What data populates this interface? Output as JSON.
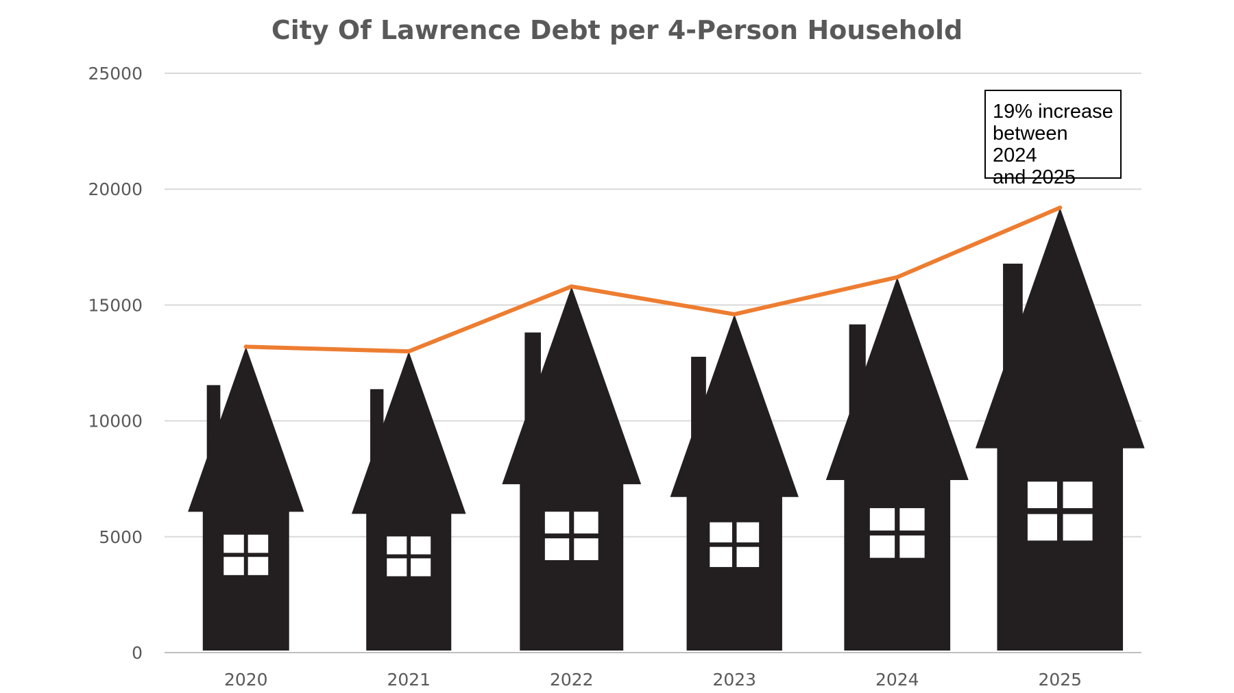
{
  "chart_data": {
    "type": "line",
    "title": "City Of Lawrence Debt per 4-Person Household",
    "xlabel": "",
    "ylabel": "",
    "categories": [
      "2020",
      "2021",
      "2022",
      "2023",
      "2024",
      "2025"
    ],
    "series": [
      {
        "values": [
          13200,
          13000,
          15800,
          14600,
          16200,
          19200
        ]
      }
    ],
    "ylim": [
      0,
      25000
    ],
    "yticks": [
      0,
      5000,
      10000,
      15000,
      20000,
      25000
    ],
    "grid": true,
    "line_color": "#ED7D31",
    "house_color": "#231F20",
    "annotation": "19% increase\nbetween 2024\nand 2025"
  }
}
